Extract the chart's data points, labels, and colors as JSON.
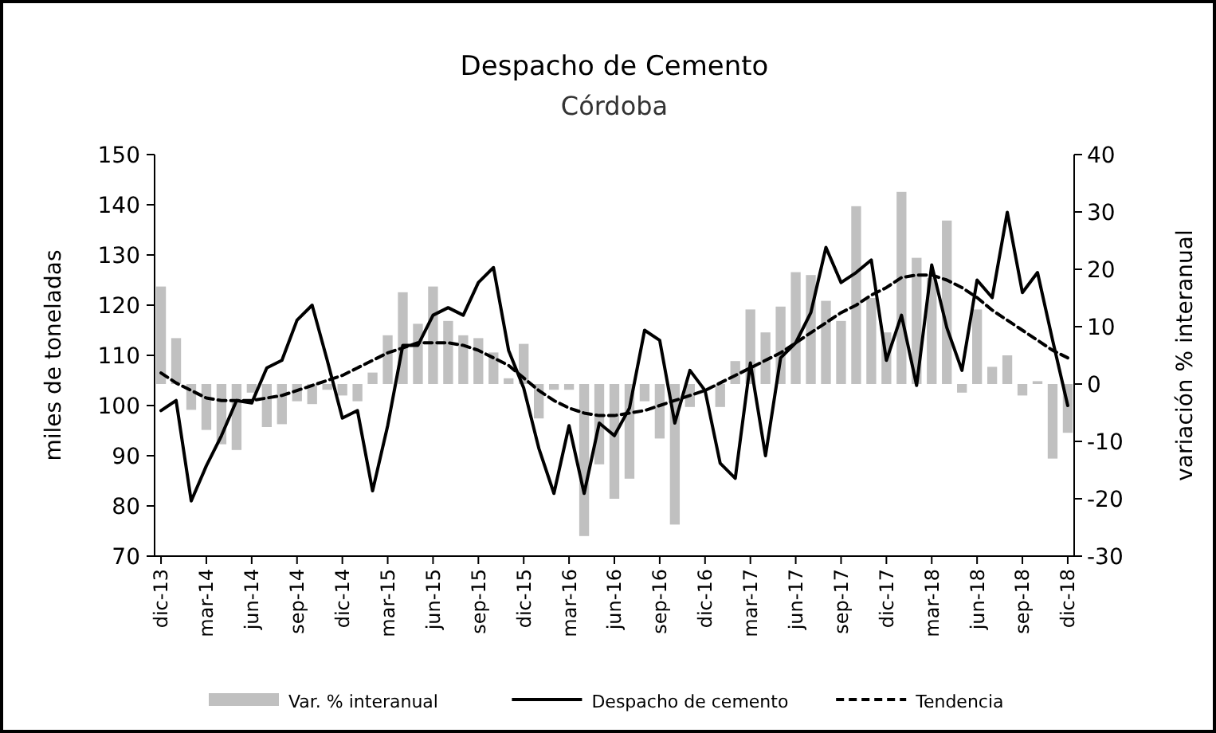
{
  "chart_data": {
    "type": "line",
    "title": "Despacho de Cemento",
    "subtitle": "Córdoba",
    "ylabel": "miles de toneladas",
    "y2label": "variación % interanual",
    "categories": [
      "dic-13",
      null,
      null,
      "mar-14",
      null,
      null,
      "jun-14",
      null,
      null,
      "sep-14",
      null,
      null,
      "dic-14",
      null,
      null,
      "mar-15",
      null,
      null,
      "jun-15",
      null,
      null,
      "sep-15",
      null,
      null,
      "dic-15",
      null,
      null,
      "mar-16",
      null,
      null,
      "jun-16",
      null,
      null,
      "sep-16",
      null,
      null,
      "dic-16",
      null,
      null,
      "mar-17",
      null,
      null,
      "jun-17",
      null,
      null,
      "sep-17",
      null,
      null,
      "dic-17",
      null,
      null,
      "mar-18",
      null,
      null,
      "jun-18",
      null,
      null,
      "sep-18",
      null,
      null,
      "dic-18"
    ],
    "series": [
      {
        "name": "Var. % interanual",
        "type": "bar",
        "axis": "y2",
        "color": "#c0c0c0",
        "values": [
          17,
          8,
          -4.5,
          -8,
          -10.5,
          -11.5,
          -1.5,
          -7.5,
          -7,
          -3,
          -3.5,
          -1,
          -2,
          -3,
          2,
          8.5,
          16,
          10.5,
          17,
          11,
          8.5,
          8,
          5.5,
          1,
          7,
          -6,
          -1,
          -1,
          -26.5,
          -14,
          -20,
          -16.5,
          -3,
          -9.5,
          -24.5,
          -4,
          null,
          -4,
          4,
          13,
          9,
          13.5,
          19.5,
          19,
          14.5,
          11,
          31,
          15,
          9,
          33.5,
          22,
          18.5,
          28.5,
          -1.5,
          13,
          3,
          5,
          -2,
          0.5,
          -13,
          -8.5
        ]
      },
      {
        "name": "Despacho de cemento",
        "axis": "y",
        "color": "#000000",
        "line_style": "solid",
        "values": [
          99,
          101,
          81,
          88,
          94,
          101,
          100.5,
          107.5,
          109,
          117,
          120,
          109,
          97.5,
          99,
          83,
          96,
          112,
          112,
          118,
          119.5,
          118,
          124.5,
          127.5,
          111,
          103.5,
          91.5,
          82.5,
          96,
          82.5,
          96.5,
          94,
          99.5,
          115,
          113,
          96.5,
          107,
          103,
          88.5,
          85.5,
          108.5,
          90,
          109.5,
          112.5,
          118.5,
          131.5,
          124.5,
          126.5,
          129,
          109,
          118,
          104,
          128,
          115.5,
          107,
          125,
          121.5,
          138.5,
          122.5,
          126.5,
          113,
          100
        ]
      },
      {
        "name": "Tendencia",
        "axis": "y",
        "color": "#000000",
        "line_style": "dashed",
        "values": [
          106.5,
          104.5,
          103,
          101.5,
          101,
          101,
          101,
          101.5,
          102,
          103,
          104,
          105,
          106,
          107.5,
          109,
          110.5,
          111.5,
          112.5,
          112.5,
          112.5,
          112,
          111,
          109.5,
          108,
          105.5,
          103,
          101,
          99.5,
          98.5,
          98,
          98,
          98.5,
          99,
          100,
          101,
          102,
          103,
          104.5,
          106,
          107.5,
          109,
          110.5,
          112.5,
          114.5,
          116.5,
          118.5,
          120,
          122,
          123.5,
          125.5,
          126,
          126,
          125,
          123.5,
          121.5,
          119,
          117,
          115,
          113,
          111,
          109.5
        ]
      }
    ],
    "ylim": [
      70,
      150
    ],
    "yticks": [
      70,
      80,
      90,
      100,
      110,
      120,
      130,
      140,
      150
    ],
    "y2lim": [
      -30,
      40
    ],
    "y2ticks": [
      -30,
      -20,
      -10,
      0,
      10,
      20,
      30,
      40
    ],
    "legend": "bottom"
  }
}
